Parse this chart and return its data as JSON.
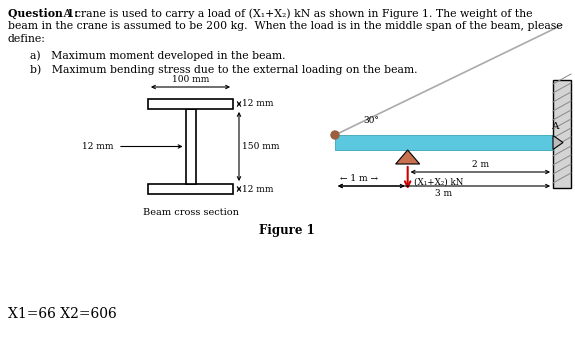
{
  "title_bold": "Question 1:",
  "title_rest": " A crane is used to carry a load of (X₁+X₂) kN as shown in Figure 1. The weight of the\nbeam in the crane is assumed to be 200 kg.  When the load is in the middle span of the beam, please\ndefine:",
  "item_a": "a)   Maximum moment developed in the beam.",
  "item_b": "b)   Maximum bending stress due to the external loading on the beam.",
  "figure_label": "Figure 1",
  "x1_x2_label": "X1=66 X2=606",
  "beam_label": "Beam cross section",
  "dim_100mm": "100 mm",
  "dim_12mm_top": "12 mm",
  "dim_150mm": "150 mm",
  "dim_12mm_web": "12 mm",
  "dim_12mm_bot": "12 mm",
  "dim_2m": "2 m",
  "dim_3m": "3 m",
  "dim_1m": "1 m →",
  "angle_30": "30°",
  "point_A": "A",
  "load_label": "(X₁+X₂) kN",
  "bg_color": "#ffffff",
  "beam_fill_color": "#5bc8e0",
  "wall_color": "#d4d4d4",
  "cable_color": "#aaaaaa",
  "load_tri_color": "#c87050",
  "load_arrow_color": "#cc0000",
  "text_color": "#000000",
  "ibeam_lw": 1.2
}
